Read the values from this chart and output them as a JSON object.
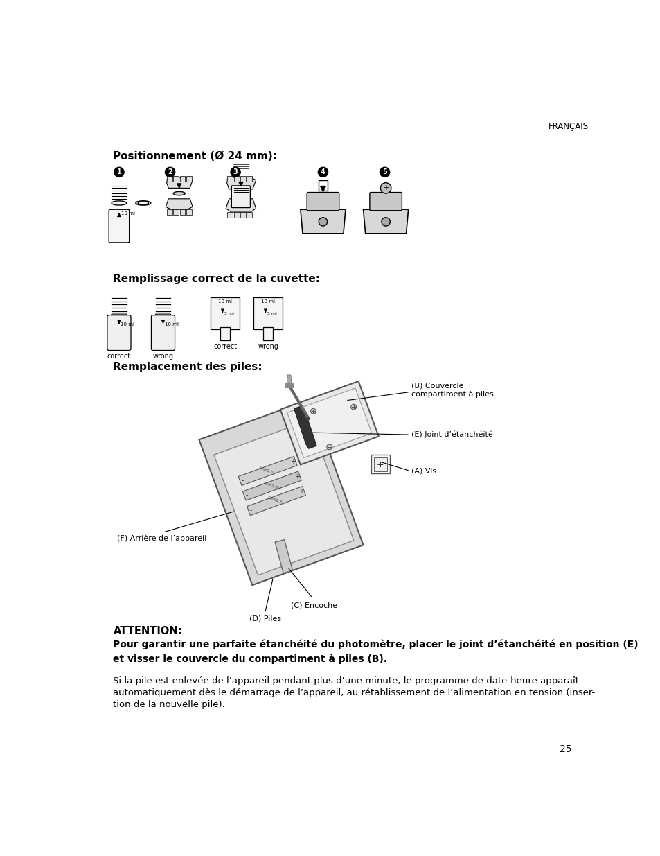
{
  "bg_color": "#ffffff",
  "text_color": "#000000",
  "page_number": "25",
  "header_right": "FRANÇAIS",
  "section1_title": "Positionnement (Ø 24 mm):",
  "section2_title": "Remplissage correct de la cuvette:",
  "section3_title": "Remplacement des piles:",
  "attention_label": "ATTENTION:",
  "attention_bold_line1": "Pour garantir une parfaite étanchéité du photomètre, placer le joint d’étanchéité en position (E)",
  "attention_bold_line2": "et visser le couvercle du compartiment à piles (B).",
  "attention_normal": "Si la pile est enlevée de l’appareil pendant plus d’une minute, le programme de date-heure apparaît\nautomatiquement dès le démarrage de l’appareil, au rétablissement de l’alimentation en tension (inser-\ntion de la nouvelle pile).",
  "label_A": "(A) Vis",
  "label_B": "(B) Couvercle\ncompartiment à piles",
  "label_C": "(C) Encoche",
  "label_D": "(D) Piles",
  "label_E": "(E) Joint d’étanchéité",
  "label_F": "(F) Arrière de l’appareil",
  "correct1": "correct",
  "wrong1": "wrong",
  "correct2": "correct",
  "wrong2": "wrong"
}
